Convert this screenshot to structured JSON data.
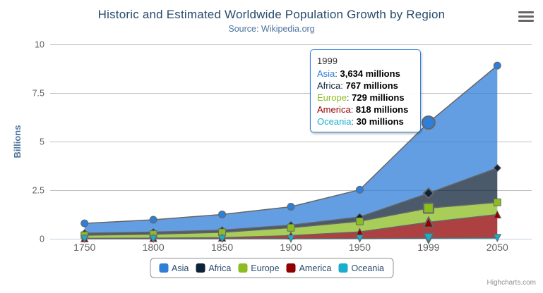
{
  "chart_data": {
    "type": "area",
    "stacking": "normal",
    "title": "Historic and Estimated Worldwide Population Growth by Region",
    "subtitle": "Source: Wikipedia.org",
    "xlabel": "",
    "ylabel": "Billions",
    "categories": [
      "1750",
      "1800",
      "1850",
      "1900",
      "1950",
      "1999",
      "2050"
    ],
    "yticks": [
      0,
      2.5,
      5,
      7.5,
      10
    ],
    "ylim": [
      0,
      10
    ],
    "value_unit": "millions",
    "grid": true,
    "legend_position": "bottom-center",
    "hovered_category": "1999",
    "hovered_index": 5,
    "series": [
      {
        "name": "Asia",
        "color": "#2f7ed8",
        "marker_symbol": "circle",
        "values_millions": [
          502,
          635,
          809,
          947,
          1402,
          3634,
          5268
        ]
      },
      {
        "name": "Africa",
        "color": "#0d233a",
        "marker_symbol": "diamond",
        "values_millions": [
          106,
          107,
          111,
          133,
          221,
          767,
          1766
        ]
      },
      {
        "name": "Europe",
        "color": "#8bbc21",
        "marker_symbol": "square",
        "values_millions": [
          163,
          203,
          276,
          408,
          547,
          729,
          628
        ]
      },
      {
        "name": "America",
        "color": "#910000",
        "marker_symbol": "triangle",
        "values_millions": [
          18,
          31,
          54,
          156,
          339,
          818,
          1201
        ]
      },
      {
        "name": "Oceania",
        "color": "#1aadce",
        "marker_symbol": "triangle-down",
        "values_millions": [
          2,
          2,
          2,
          6,
          13,
          30,
          46
        ]
      }
    ]
  },
  "tooltip": {
    "header": "1999",
    "border_color": "#2f7ed8",
    "rows": [
      {
        "name": "Asia",
        "color": "#2f7ed8",
        "value": "3,634 millions"
      },
      {
        "name": "Africa",
        "color": "#0d233a",
        "value": "767 millions"
      },
      {
        "name": "Europe",
        "color": "#8bbc21",
        "value": "729 millions"
      },
      {
        "name": "America",
        "color": "#910000",
        "value": "818 millions"
      },
      {
        "name": "Oceania",
        "color": "#1aadce",
        "value": "30 millions"
      }
    ]
  },
  "legend": {
    "items": [
      {
        "label": "Asia",
        "color": "#2f7ed8"
      },
      {
        "label": "Africa",
        "color": "#0d233a"
      },
      {
        "label": "Europe",
        "color": "#8bbc21"
      },
      {
        "label": "America",
        "color": "#910000"
      },
      {
        "label": "Oceania",
        "color": "#1aadce"
      }
    ]
  },
  "credits": "Highcharts.com",
  "colors": {
    "title": "#274b6d",
    "subtitle": "#4d759e",
    "axis_labels": "#606060",
    "axis_title": "#4d759e",
    "gridline": "#c0c0c0",
    "axis_line": "#c0d0e0",
    "series_outline": "#666666",
    "legend_border": "#909090",
    "credits_text": "#909090"
  }
}
